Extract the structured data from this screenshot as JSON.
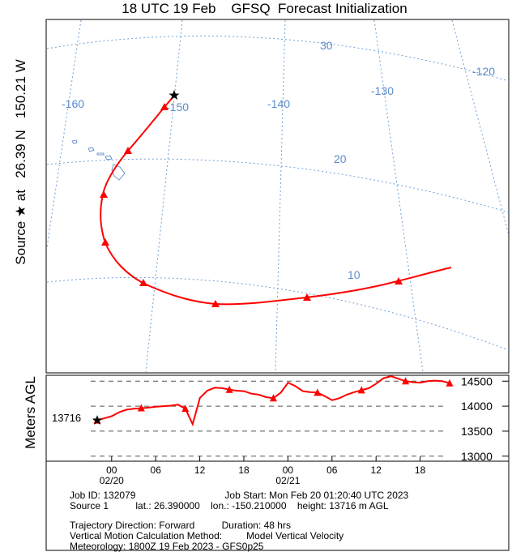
{
  "header": {
    "title": "18 UTC 19 Feb    GFSQ  Forecast Initialization",
    "side_label": "Source ★ at   26.39 N   150.21 W"
  },
  "colors": {
    "trajectory": "#ff0000",
    "grid": "#6fa0d8",
    "grid_label": "#5b8ccc",
    "coast": "#4a7fc0",
    "frame": "#000000",
    "dash": "#555555"
  },
  "map": {
    "lon_labels": [
      "-160",
      "-150",
      "-140",
      "-130",
      "-120"
    ],
    "lat_labels": [
      "30",
      "20",
      "10"
    ]
  },
  "chart_data": {
    "type": "line",
    "title": "18 UTC 19 Feb    GFSQ  Forecast Initialization",
    "ylabel": "Meters AGL",
    "yticks": [
      "14500",
      "14000",
      "13500",
      "13000"
    ],
    "ylim": [
      12850,
      14650
    ],
    "x_ticks": [
      "00",
      "06",
      "12",
      "18",
      "00",
      "06",
      "12",
      "18"
    ],
    "x_dates": [
      "02/20",
      "02/21"
    ],
    "xlim_hours": [
      0,
      52.6
    ],
    "source_height_label": "13716",
    "start": {
      "hour": 0,
      "height": 13716
    },
    "series": [
      {
        "hours": [
          0,
          1,
          2,
          3,
          4,
          5,
          6,
          7,
          8,
          9,
          10,
          11,
          12,
          13,
          14,
          15,
          16,
          17,
          18,
          19,
          20,
          21,
          22,
          23,
          24,
          25,
          26,
          27,
          28,
          29,
          30,
          31,
          32,
          33,
          34,
          35,
          36,
          37,
          38,
          39,
          40,
          41,
          42,
          43,
          44,
          45,
          46,
          47,
          48
        ],
        "heights": [
          13716,
          13760,
          13800,
          13880,
          13930,
          13950,
          13960,
          13970,
          13990,
          14000,
          14010,
          14030,
          13950,
          13640,
          14170,
          14310,
          14370,
          14360,
          14330,
          14310,
          14300,
          14250,
          14230,
          14180,
          14160,
          14270,
          14470,
          14400,
          14300,
          14280,
          14270,
          14200,
          14120,
          14160,
          14230,
          14280,
          14320,
          14360,
          14450,
          14560,
          14600,
          14550,
          14500,
          14480,
          14470,
          14500,
          14510,
          14500,
          14460
        ],
        "markers_hours": [
          0,
          6,
          12,
          18,
          24,
          30,
          36,
          42,
          48
        ]
      }
    ]
  },
  "job": {
    "line1": "Job ID: 132079                                 Job Start: Mon Feb 20 01:20:40 UTC 2023",
    "line2": "Source 1          lat.: 26.390000    lon.: -150.210000    height: 13716 m AGL",
    "line3": "Trajectory Direction: Forward          Duration: 48 hrs",
    "line4": "Vertical Motion Calculation Method:         Model Vertical Velocity",
    "line5": "Meteorology: 1800Z 19 Feb 2023 - GFS0p25"
  }
}
